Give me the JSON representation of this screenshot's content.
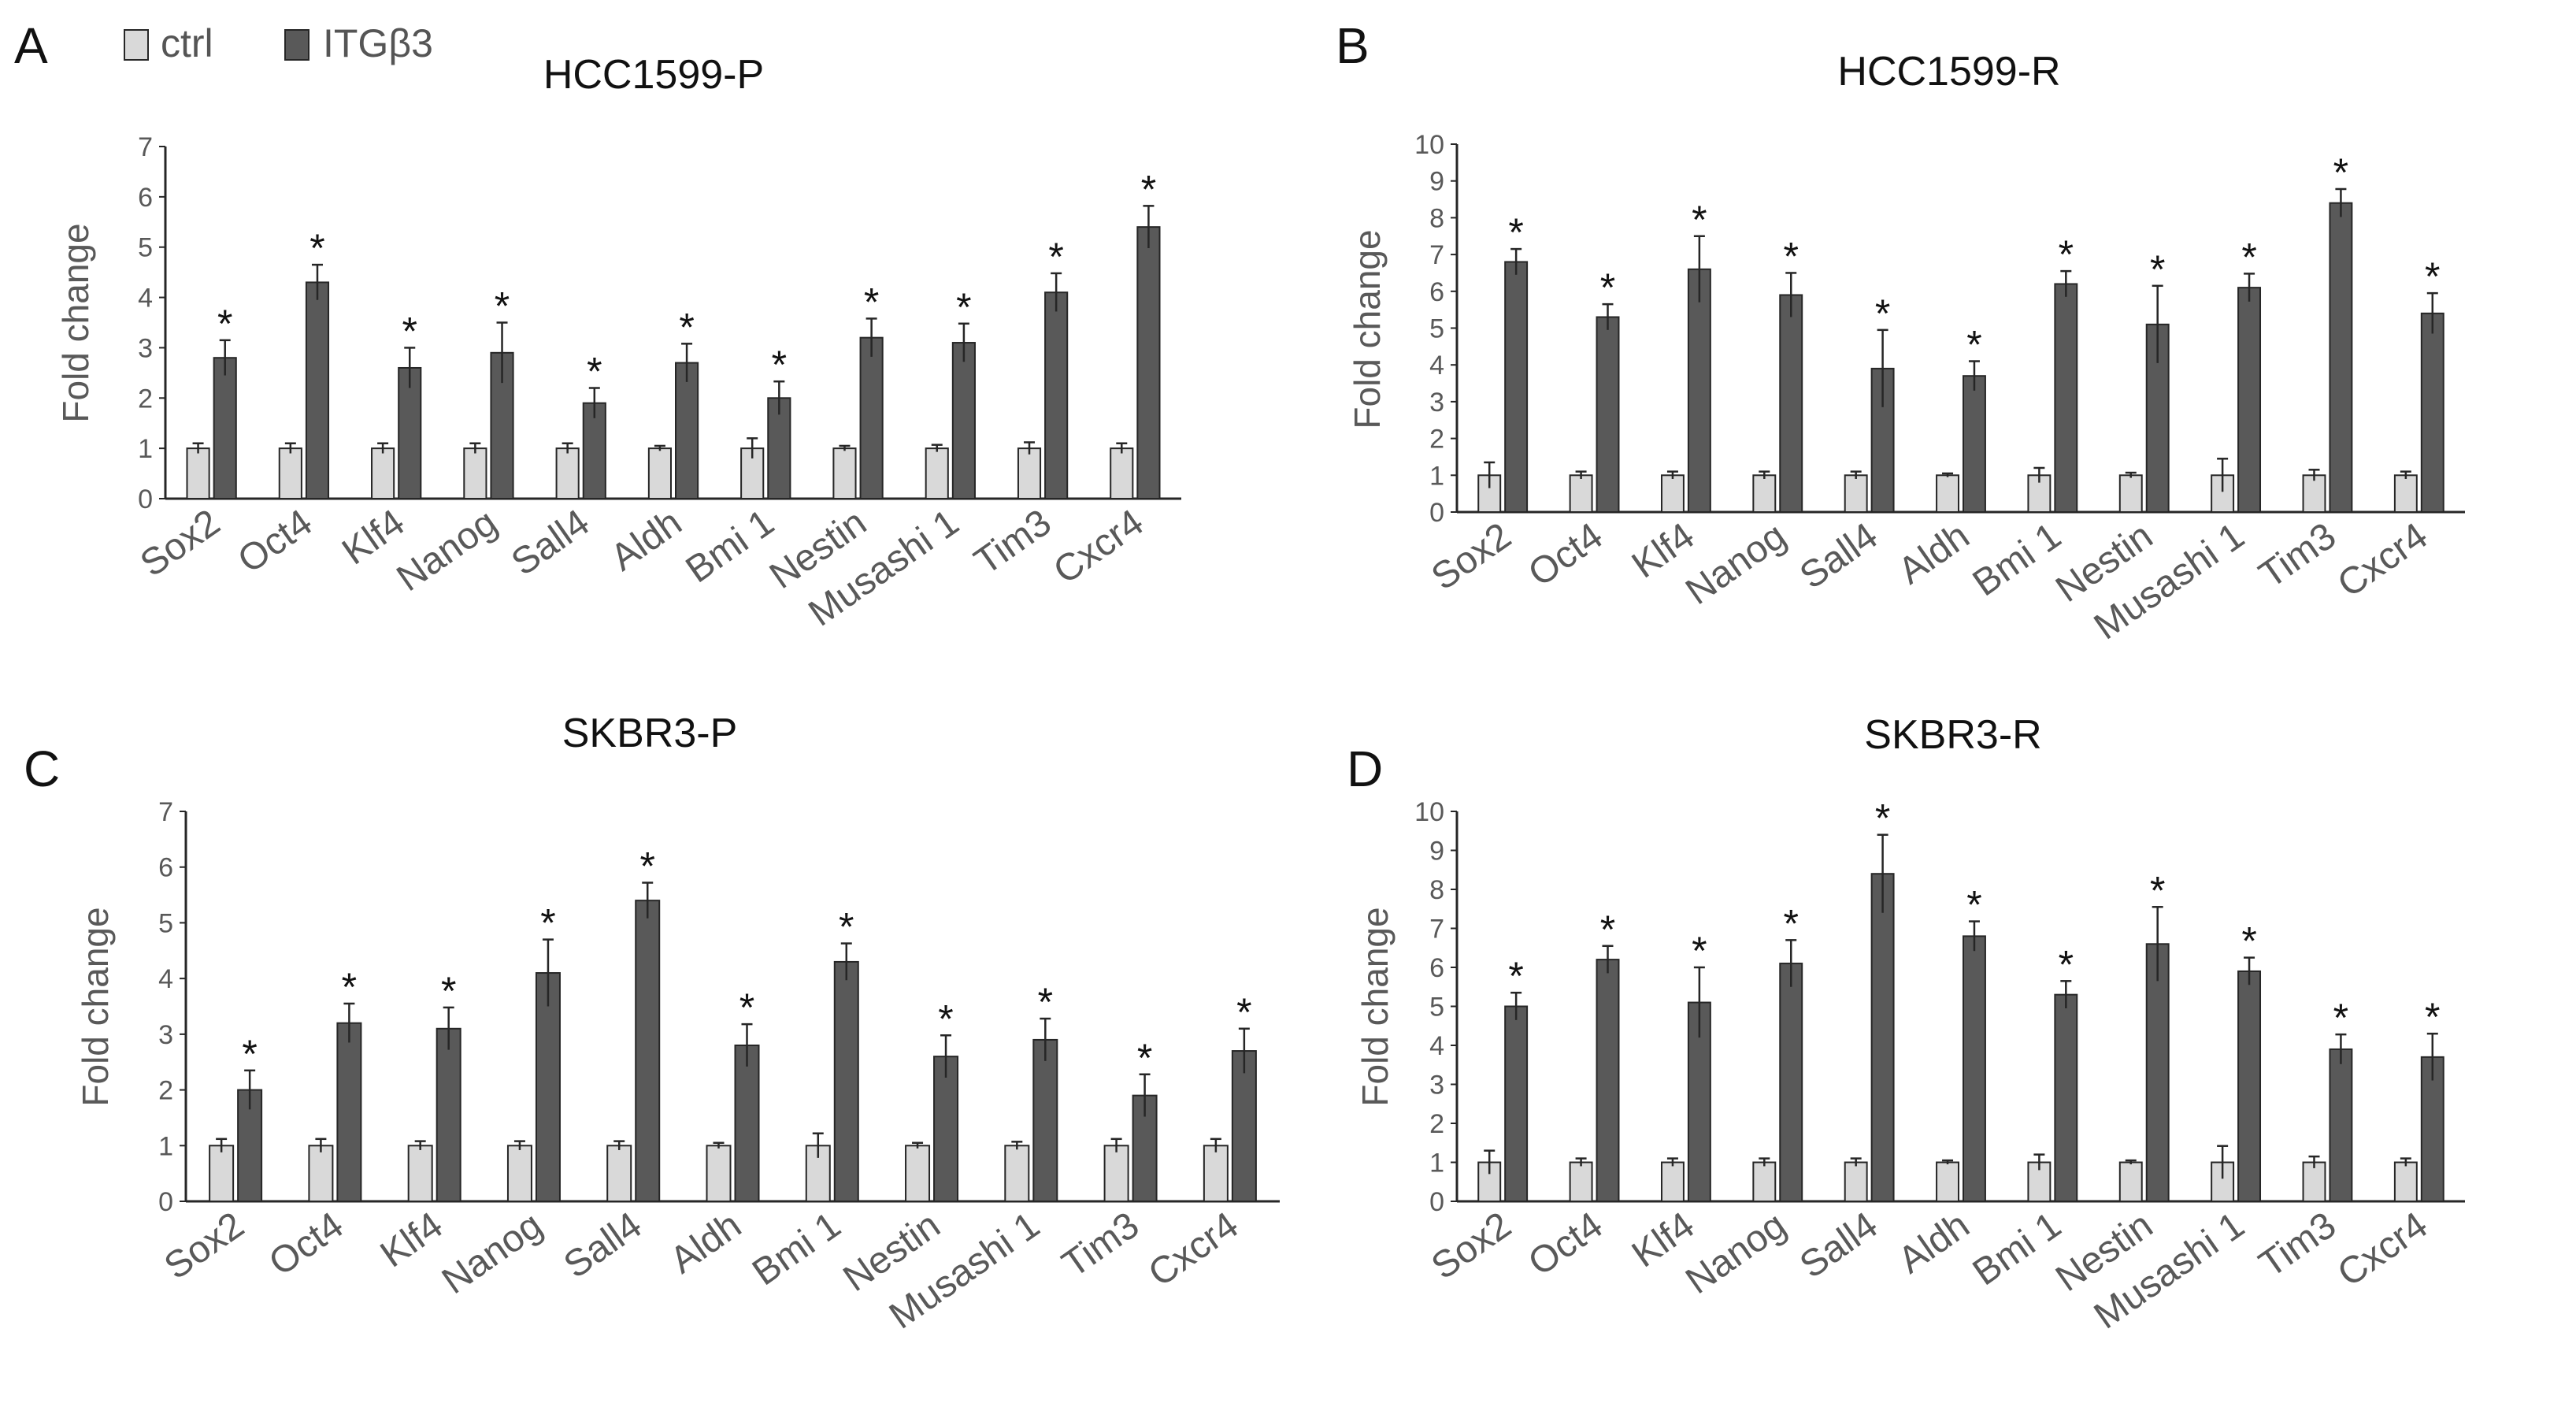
{
  "legend": {
    "items": [
      {
        "label": "ctrl",
        "color": "#d9d9d9"
      },
      {
        "label": "ITGβ3",
        "color": "#595959"
      }
    ]
  },
  "colors": {
    "ctrl": "#d9d9d9",
    "treat": "#595959",
    "stroke": "#262626",
    "axis": "#262626"
  },
  "chart_data": [
    {
      "panel": "A",
      "type": "bar",
      "title": "HCC1599-P",
      "xlabel": "",
      "ylabel": "Fold change",
      "ylim": [
        0,
        7
      ],
      "yticks": [
        0,
        1,
        2,
        3,
        4,
        5,
        6,
        7
      ],
      "categories": [
        "Sox2",
        "Oct4",
        "Klf4",
        "Nanog",
        "Sall4",
        "Aldh",
        "Bmi 1",
        "Nestin",
        "Musashi 1",
        "Tim3",
        "Cxcr4"
      ],
      "series": [
        {
          "name": "ctrl",
          "values": [
            1,
            1,
            1,
            1,
            1,
            1,
            1,
            1,
            1,
            1,
            1
          ],
          "errors": [
            0.1,
            0.1,
            0.1,
            0.1,
            0.1,
            0.05,
            0.2,
            0.05,
            0.07,
            0.12,
            0.1
          ]
        },
        {
          "name": "ITGβ3",
          "values": [
            2.8,
            4.3,
            2.6,
            2.9,
            1.9,
            2.7,
            2.0,
            3.2,
            3.1,
            4.1,
            5.4
          ],
          "errors": [
            0.35,
            0.35,
            0.4,
            0.6,
            0.3,
            0.38,
            0.33,
            0.38,
            0.38,
            0.38,
            0.42
          ]
        }
      ],
      "significance": [
        "*",
        "*",
        "*",
        "*",
        "*",
        "*",
        "*",
        "*",
        "*",
        "*",
        "*"
      ]
    },
    {
      "panel": "B",
      "type": "bar",
      "title": "HCC1599-R",
      "xlabel": "",
      "ylabel": "Fold change",
      "ylim": [
        0,
        10
      ],
      "yticks": [
        0,
        1,
        2,
        3,
        4,
        5,
        6,
        7,
        8,
        9,
        10
      ],
      "categories": [
        "Sox2",
        "Oct4",
        "Klf4",
        "Nanog",
        "Sall4",
        "Aldh",
        "Bmi 1",
        "Nestin",
        "Musashi 1",
        "Tim3",
        "Cxcr4"
      ],
      "series": [
        {
          "name": "ctrl",
          "values": [
            1,
            1,
            1,
            1,
            1,
            1,
            1,
            1,
            1,
            1,
            1
          ],
          "errors": [
            0.35,
            0.1,
            0.1,
            0.1,
            0.1,
            0.05,
            0.2,
            0.07,
            0.45,
            0.15,
            0.1
          ]
        },
        {
          "name": "ITGβ3",
          "values": [
            6.8,
            5.3,
            6.6,
            5.9,
            3.9,
            3.7,
            6.2,
            5.1,
            6.1,
            8.4,
            5.4
          ],
          "errors": [
            0.35,
            0.35,
            0.9,
            0.6,
            1.05,
            0.4,
            0.35,
            1.05,
            0.38,
            0.38,
            0.55
          ]
        }
      ],
      "significance": [
        "*",
        "*",
        "*",
        "*",
        "*",
        "*",
        "*",
        "*",
        "*",
        "*",
        "*"
      ]
    },
    {
      "panel": "C",
      "type": "bar",
      "title": "SKBR3-P",
      "xlabel": "",
      "ylabel": "Fold change",
      "ylim": [
        0,
        7
      ],
      "yticks": [
        0,
        1,
        2,
        3,
        4,
        5,
        6,
        7
      ],
      "categories": [
        "Sox2",
        "Oct4",
        "Klf4",
        "Nanog",
        "Sall4",
        "Aldh",
        "Bmi 1",
        "Nestin",
        "Musashi 1",
        "Tim3",
        "Cxcr4"
      ],
      "series": [
        {
          "name": "ctrl",
          "values": [
            1,
            1,
            1,
            1,
            1,
            1,
            1,
            1,
            1,
            1,
            1
          ],
          "errors": [
            0.12,
            0.12,
            0.08,
            0.08,
            0.08,
            0.05,
            0.22,
            0.05,
            0.07,
            0.12,
            0.12
          ]
        },
        {
          "name": "ITGβ3",
          "values": [
            2.0,
            3.2,
            3.1,
            4.1,
            5.4,
            2.8,
            4.3,
            2.6,
            2.9,
            1.9,
            2.7
          ],
          "errors": [
            0.35,
            0.35,
            0.38,
            0.6,
            0.32,
            0.38,
            0.33,
            0.38,
            0.38,
            0.38,
            0.4
          ]
        }
      ],
      "significance": [
        "*",
        "*",
        "*",
        "*",
        "*",
        "*",
        "*",
        "*",
        "*",
        "*",
        "*"
      ]
    },
    {
      "panel": "D",
      "type": "bar",
      "title": "SKBR3-R",
      "xlabel": "",
      "ylabel": "Fold change",
      "ylim": [
        0,
        10
      ],
      "yticks": [
        0,
        1,
        2,
        3,
        4,
        5,
        6,
        7,
        8,
        9,
        10
      ],
      "categories": [
        "Sox2",
        "Oct4",
        "Klf4",
        "Nanog",
        "Sall4",
        "Aldh",
        "Bmi 1",
        "Nestin",
        "Musashi 1",
        "Tim3",
        "Cxcr4"
      ],
      "series": [
        {
          "name": "ctrl",
          "values": [
            1,
            1,
            1,
            1,
            1,
            1,
            1,
            1,
            1,
            1,
            1
          ],
          "errors": [
            0.3,
            0.1,
            0.1,
            0.1,
            0.1,
            0.05,
            0.2,
            0.05,
            0.42,
            0.15,
            0.1
          ]
        },
        {
          "name": "ITGβ3",
          "values": [
            5.0,
            6.2,
            5.1,
            6.1,
            8.4,
            6.8,
            5.3,
            6.6,
            5.9,
            3.9,
            3.7
          ],
          "errors": [
            0.35,
            0.35,
            0.9,
            0.6,
            1.0,
            0.38,
            0.35,
            0.95,
            0.35,
            0.38,
            0.6
          ]
        }
      ],
      "significance": [
        "*",
        "*",
        "*",
        "*",
        "*",
        "*",
        "*",
        "*",
        "*",
        "*",
        "*"
      ]
    }
  ]
}
